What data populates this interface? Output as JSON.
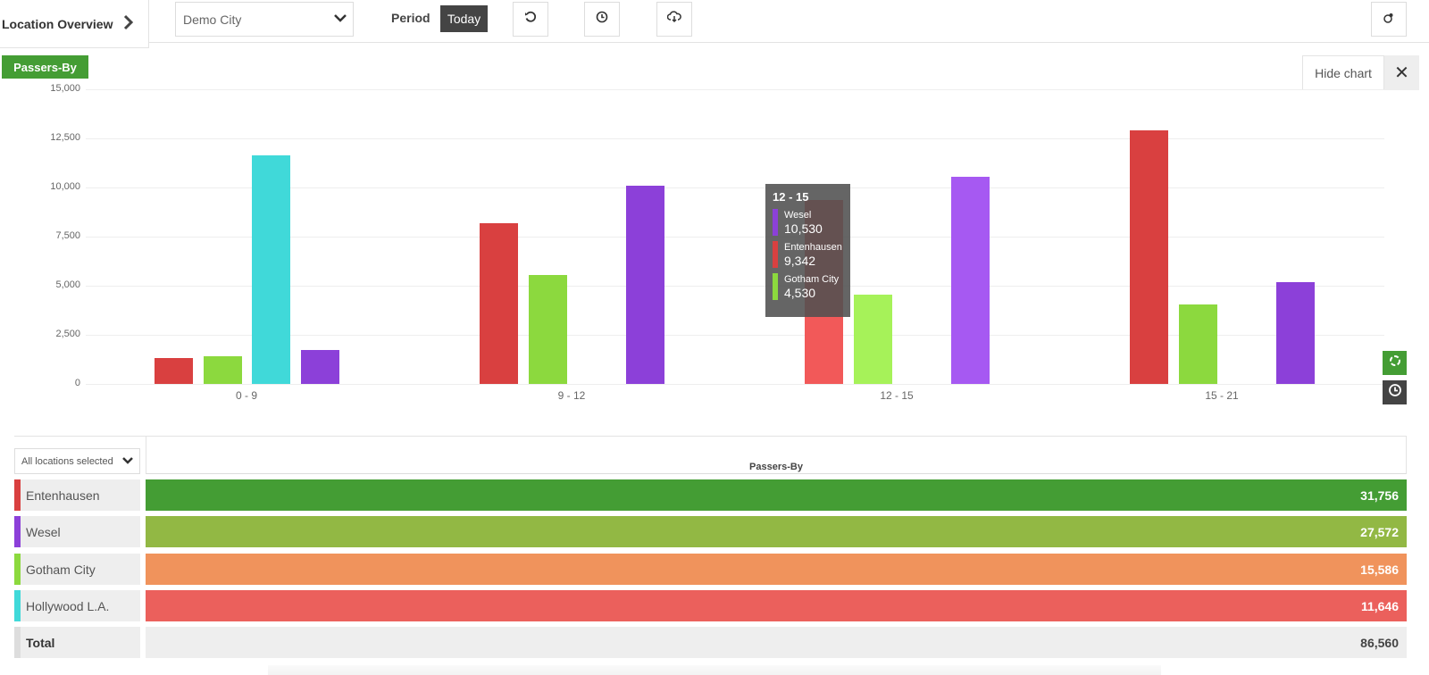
{
  "header": {
    "title": "Location Overview",
    "city_select": "Demo City",
    "period_label": "Period",
    "period_value": "Today",
    "icons": [
      "refresh-icon",
      "clock-icon",
      "cloud-download-icon",
      "location-settings-icon"
    ]
  },
  "chart_panel": {
    "metric_badge": "Passers-By",
    "hide_chart_label": "Hide chart",
    "close_icon": "✕",
    "side_buttons": [
      "reload-icon",
      "clock-icon"
    ],
    "colors": {
      "Entenhausen": "#d94040",
      "Gotham City": "#8cd93e",
      "Hollywood L.A.": "#40d9d9",
      "Wesel": "#8c40d9"
    },
    "tooltip": {
      "title": "12 - 15",
      "items": [
        {
          "name": "Wesel",
          "value": "10,530",
          "color": "#8c40d9"
        },
        {
          "name": "Entenhausen",
          "value": "9,342",
          "color": "#d94040"
        },
        {
          "name": "Gotham City",
          "value": "4,530",
          "color": "#8cd93e"
        }
      ]
    }
  },
  "chart_data": {
    "type": "bar",
    "title": "Passers-By",
    "xlabel": "",
    "ylabel": "",
    "categories": [
      "0 - 9",
      "9 - 12",
      "12 - 15",
      "15 - 21"
    ],
    "y_ticks": [
      "0",
      "2,500",
      "5,000",
      "7,500",
      "10,000",
      "12,500",
      "15,000"
    ],
    "ylim": [
      0,
      15000
    ],
    "grid": true,
    "legend": "none (locations listed in table below)",
    "series": [
      {
        "name": "Entenhausen",
        "color": "#d94040",
        "values": [
          1310,
          8200,
          9342,
          12904
        ]
      },
      {
        "name": "Gotham City",
        "color": "#8cd93e",
        "values": [
          1430,
          5560,
          4530,
          4066
        ]
      },
      {
        "name": "Hollywood L.A.",
        "color": "#40d9d9",
        "values": [
          11646,
          0,
          0,
          0
        ]
      },
      {
        "name": "Wesel",
        "color": "#8c40d9",
        "values": [
          1750,
          10100,
          10530,
          5192
        ]
      }
    ]
  },
  "table": {
    "location_filter": "All locations selected",
    "column_header": "Passers-By",
    "rows": [
      {
        "name": "Entenhausen",
        "value": "31,756",
        "swatch": "#d94040",
        "bar": "#449d34"
      },
      {
        "name": "Wesel",
        "value": "27,572",
        "swatch": "#8c40d9",
        "bar": "#92b844"
      },
      {
        "name": "Gotham City",
        "value": "15,586",
        "swatch": "#8cd93e",
        "bar": "#f0935c"
      },
      {
        "name": "Hollywood L.A.",
        "value": "11,646",
        "swatch": "#40d9d9",
        "bar": "#eb605c"
      }
    ],
    "total": {
      "name": "Total",
      "value": "86,560"
    }
  }
}
